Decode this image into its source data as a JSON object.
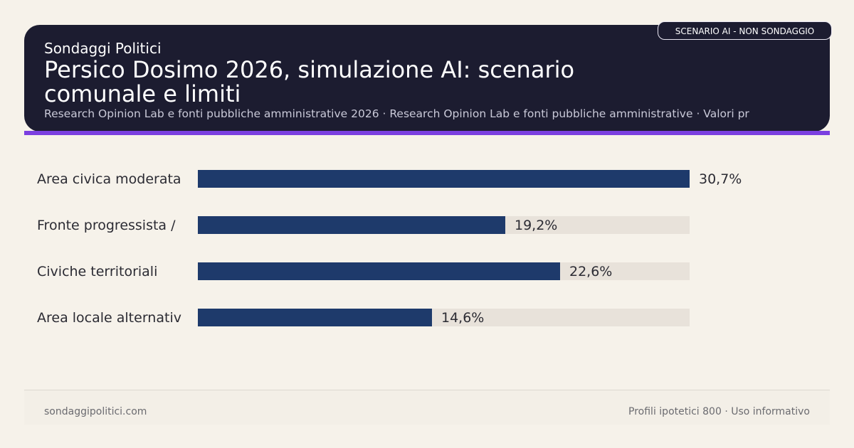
{
  "header": {
    "brand": "Sondaggi Politici",
    "title": "Persico Dosimo 2026, simulazione AI: scenario comunale e limiti",
    "subtitle": "Research Opinion Lab e fonti pubbliche amministrative 2026 · Research Opinion Lab e fonti pubbliche amministrative · Valori pr",
    "badge": "SCENARIO AI - NON SONDAGGIO"
  },
  "colors": {
    "header_bg": "#1c1c30",
    "accent": "#7b3fe0",
    "bar": "#1e3a6b",
    "track": "#e8e2da",
    "background": "#f6f2ea"
  },
  "chart_data": {
    "type": "bar",
    "orientation": "horizontal",
    "categories": [
      "Area civica moderata",
      "Fronte progressista /",
      "Civiche territoriali",
      "Area locale alternativ"
    ],
    "values": [
      30.7,
      19.2,
      22.6,
      14.6
    ],
    "value_labels": [
      "30,7%",
      "19,2%",
      "22,6%",
      "14,6%"
    ],
    "xlim": [
      0,
      30.7
    ],
    "unit": "%",
    "grid": false,
    "legend": "none"
  },
  "footer": {
    "left": "sondaggipolitici.com",
    "right": "Profili ipotetici 800 · Uso informativo"
  }
}
